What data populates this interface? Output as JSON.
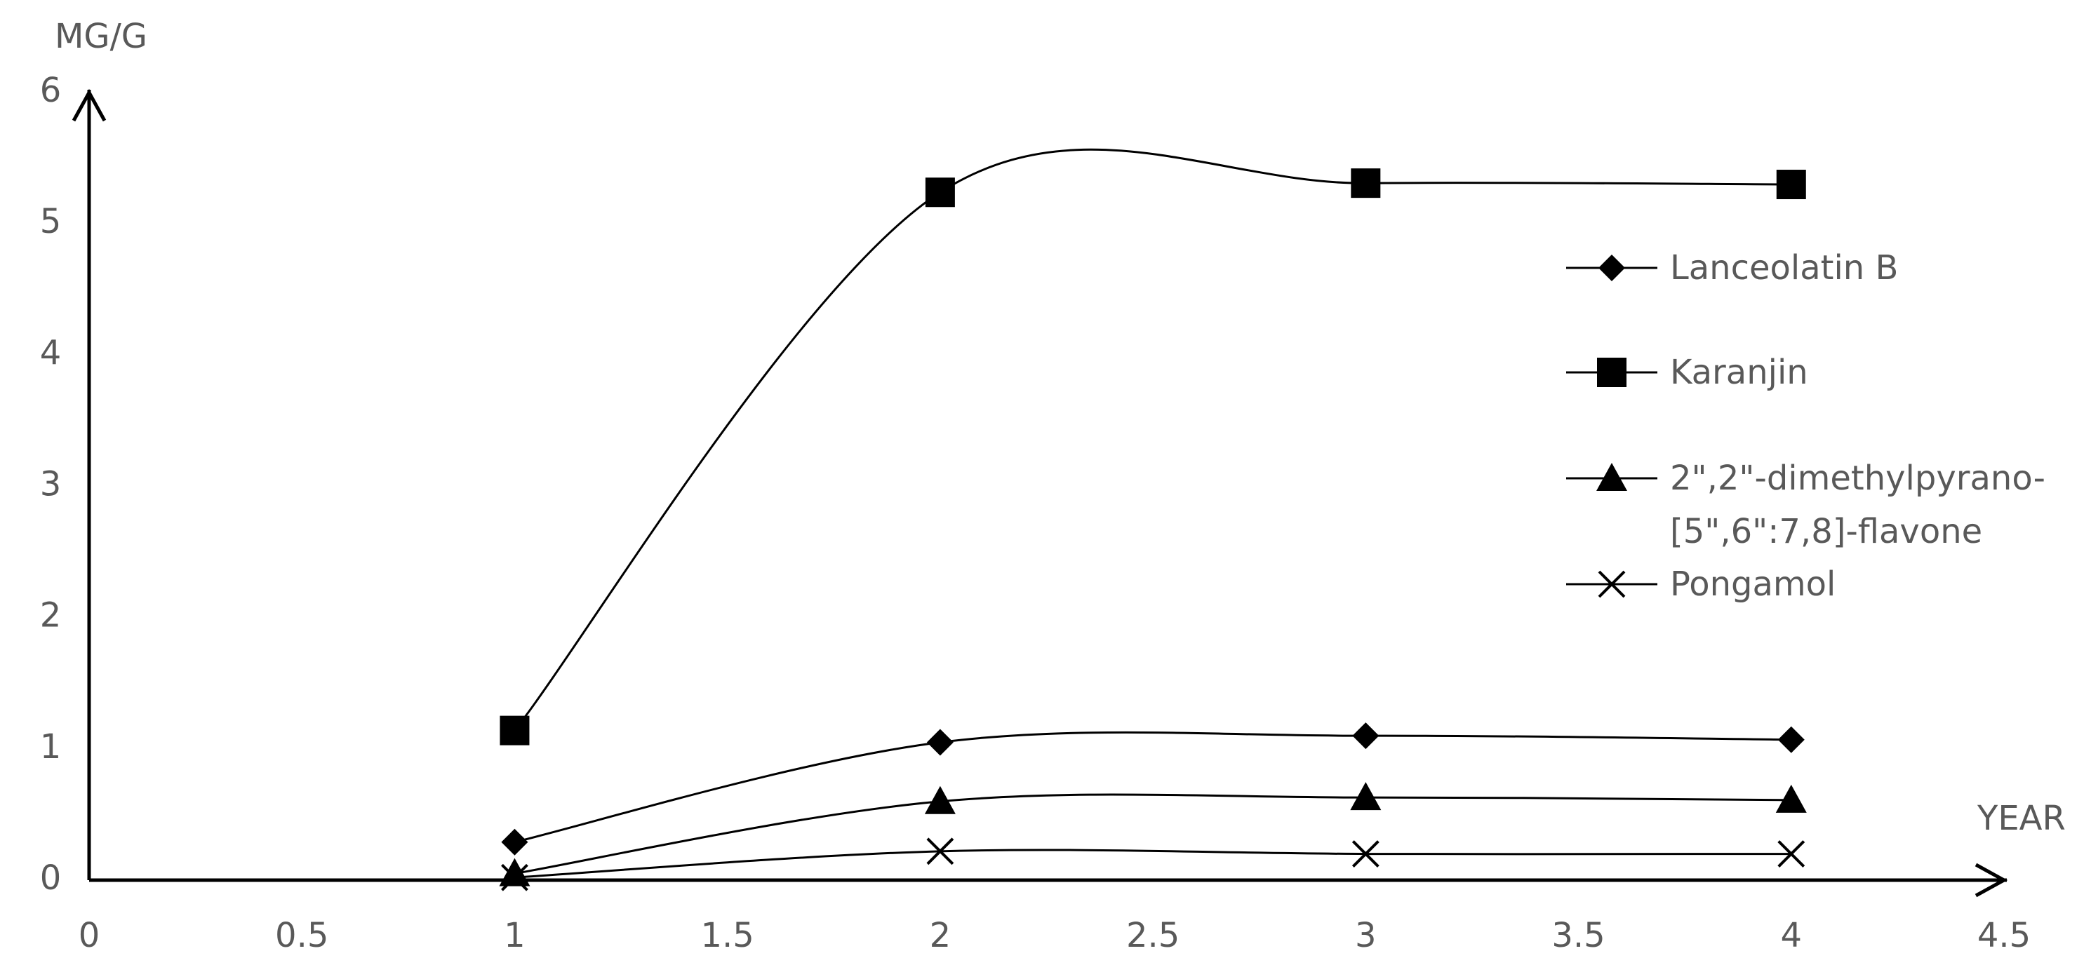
{
  "chart_data": {
    "type": "line",
    "smooth": true,
    "x_label": "YEAR",
    "y_label": "MG/G",
    "x": [
      1,
      2,
      3,
      4
    ],
    "series": [
      {
        "name": "Lanceolatin B",
        "color": "#000000",
        "marker": "diamond",
        "values": [
          0.29,
          1.05,
          1.1,
          1.07
        ]
      },
      {
        "name": "Karanjin",
        "color": "#000000",
        "marker": "square",
        "values": [
          1.14,
          5.24,
          5.31,
          5.3
        ]
      },
      {
        "name": "2\",2\"-dimethylpyrano-[5\",6\":7,8]-flavone",
        "color": "#000000",
        "marker": "triangle",
        "values": [
          0.05,
          0.6,
          0.63,
          0.61
        ]
      },
      {
        "name": "Pongamol",
        "color": "#000000",
        "marker": "x",
        "values": [
          0.02,
          0.22,
          0.2,
          0.2
        ]
      }
    ],
    "xlim": [
      0,
      4.5
    ],
    "xticks": [
      0,
      0.5,
      1,
      1.5,
      2,
      2.5,
      3,
      3.5,
      4,
      4.5
    ],
    "ylim": [
      0,
      6
    ],
    "yticks": [
      0,
      1,
      2,
      3,
      4,
      5,
      6
    ],
    "grid": false,
    "legend": "right"
  }
}
